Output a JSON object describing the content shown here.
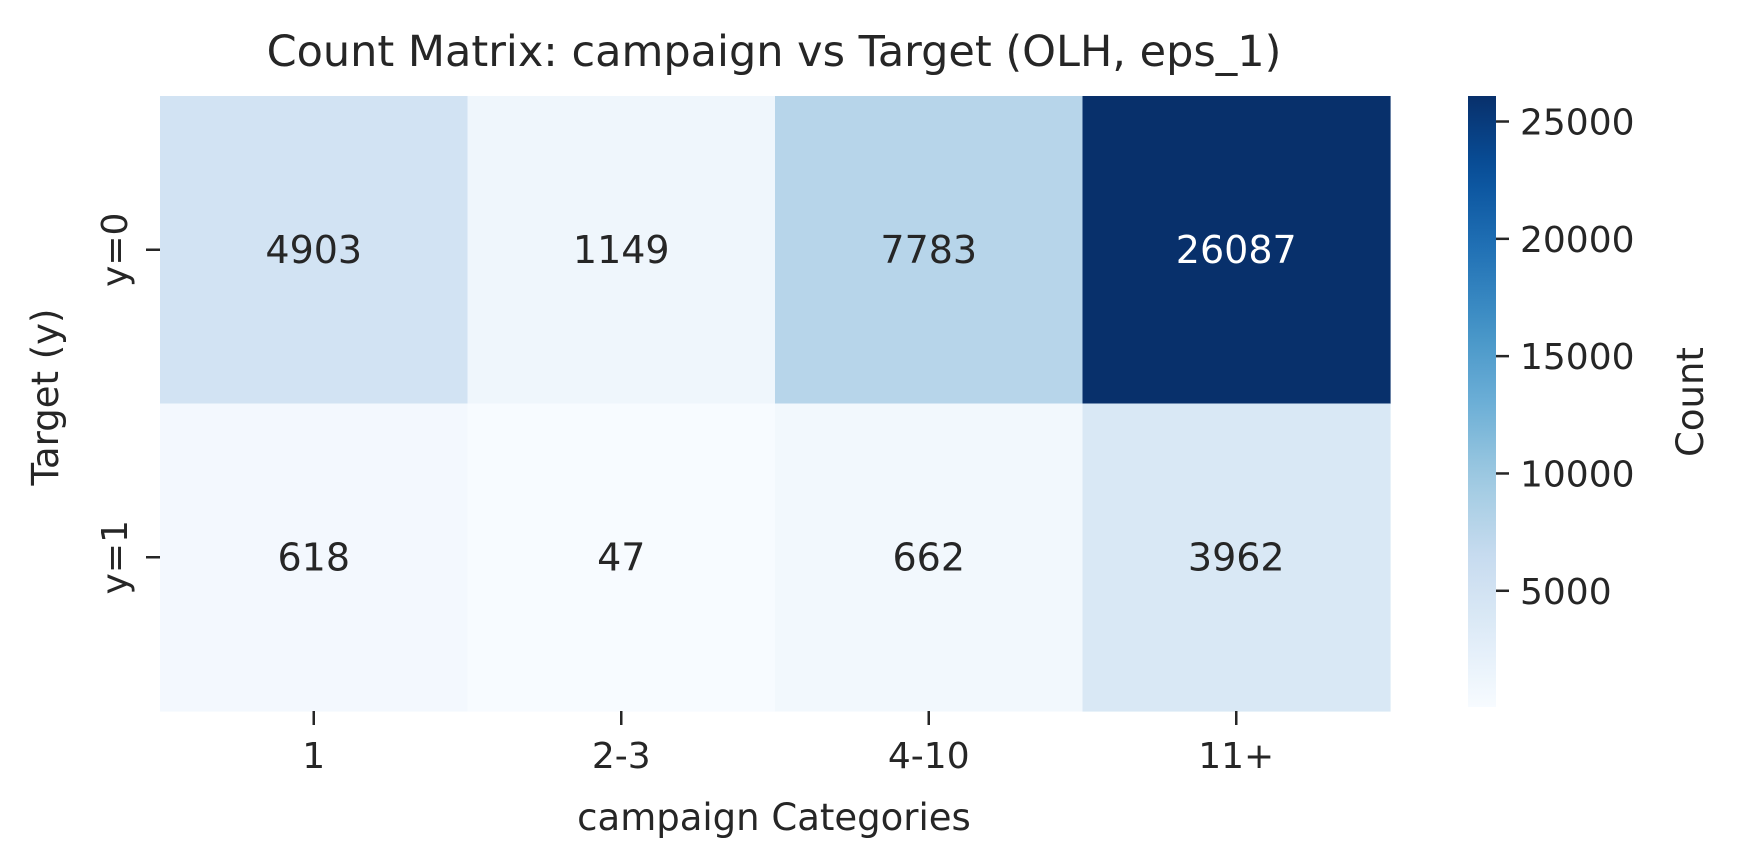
{
  "chart_data": {
    "type": "heatmap",
    "title": "Count Matrix: campaign vs Target (OLH, eps_1)",
    "xlabel": "campaign Categories",
    "ylabel": "Target (y)",
    "x_categories": [
      "1",
      "2-3",
      "4-10",
      "11+"
    ],
    "y_categories": [
      "y=0",
      "y=1"
    ],
    "values": [
      [
        4903,
        1149,
        7783,
        26087
      ],
      [
        618,
        47,
        662,
        3962
      ]
    ],
    "colormap": "Blues",
    "colorbar": {
      "label": "Count",
      "min": 47,
      "max": 26087,
      "ticks": [
        5000,
        10000,
        15000,
        20000,
        25000
      ],
      "tick_labels": [
        "5000",
        "10000",
        "15000",
        "20000",
        "25000"
      ]
    }
  }
}
